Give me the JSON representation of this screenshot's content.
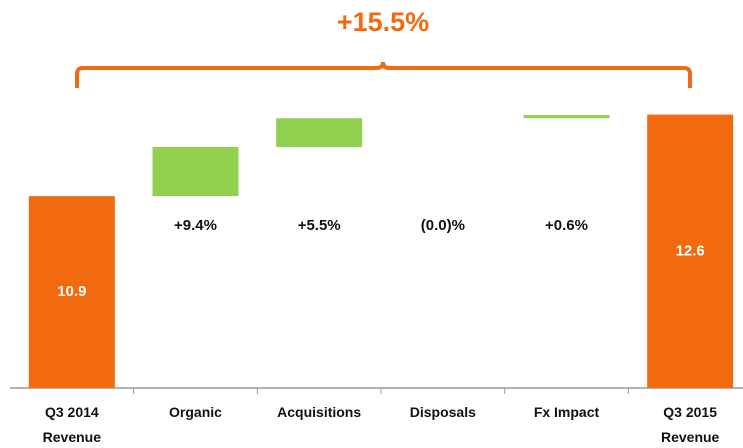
{
  "chart_data": {
    "type": "waterfall",
    "annotation": "+15.5%",
    "categories": [
      "Q3 2014 Revenue",
      "Organic",
      "Acquisitions",
      "Disposals",
      "Fx Impact",
      "Q3 2015 Revenue"
    ],
    "measure": [
      "total",
      "percent",
      "percent",
      "percent",
      "percent",
      "total"
    ],
    "values": [
      10.9,
      9.4,
      5.5,
      0.0,
      0.6,
      12.6
    ],
    "value_labels": [
      "10.9",
      "+9.4%",
      "+5.5%",
      "(0.0)%",
      "+0.6%",
      "12.6"
    ],
    "total_color": "#f26a10",
    "change_color": "#92d050",
    "ylim": [
      6.9,
      13.3
    ]
  }
}
